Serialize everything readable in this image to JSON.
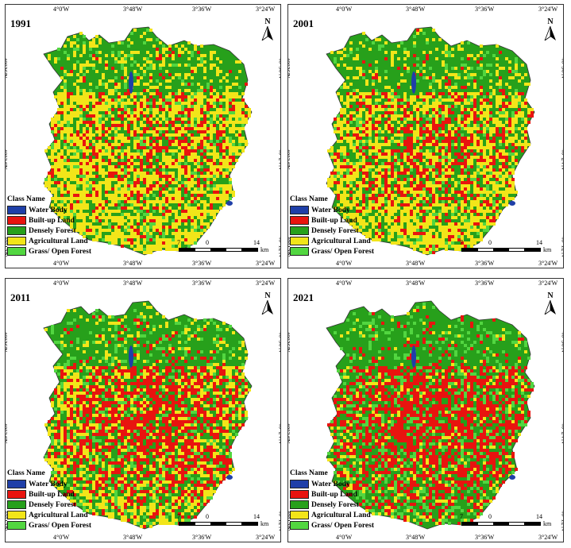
{
  "colors": {
    "water": "#1f3fa8",
    "builtup": "#e8140f",
    "dense": "#27a01b",
    "agri": "#f2e519",
    "grass": "#52d640"
  },
  "legend": {
    "title": "Class Name",
    "items": [
      {
        "label": "Water Body",
        "color": "#1f3fa8"
      },
      {
        "label": "Built-up Land",
        "color": "#e8140f"
      },
      {
        "label": "Densely Forest",
        "color": "#27a01b"
      },
      {
        "label": "Agricultural Land",
        "color": "#f2e519"
      },
      {
        "label": "Grass/ Open Forest",
        "color": "#52d640"
      }
    ]
  },
  "ticks": {
    "top": [
      "4°0'W",
      "3°48'W",
      "3°36'W",
      "3°24'W"
    ],
    "bottom": [
      "4°0'W",
      "3°48'W",
      "3°36'W",
      "3°24'W"
    ],
    "side": [
      "40°36'N",
      "40°24'N",
      "40°12'N"
    ]
  },
  "scale": {
    "left": "7",
    "mid": "0",
    "right": "14",
    "unit": "km"
  },
  "north": "N",
  "panels": [
    {
      "year": "1991",
      "mix": {
        "builtup": 0.22,
        "agri": 0.38,
        "dense": 0.32,
        "grass": 0.08
      }
    },
    {
      "year": "2001",
      "mix": {
        "builtup": 0.27,
        "agri": 0.3,
        "dense": 0.35,
        "grass": 0.08
      }
    },
    {
      "year": "2011",
      "mix": {
        "builtup": 0.45,
        "agri": 0.17,
        "dense": 0.28,
        "grass": 0.1
      }
    },
    {
      "year": "2021",
      "mix": {
        "builtup": 0.5,
        "agri": 0.06,
        "dense": 0.3,
        "grass": 0.14
      }
    }
  ]
}
